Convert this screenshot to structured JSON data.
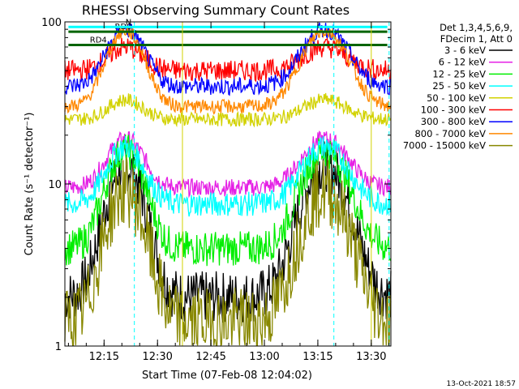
{
  "chart_data": {
    "type": "line",
    "title": "RHESSI Observing Summary Count Rates",
    "xlabel": "Start Time (07-Feb-08 12:04:02)",
    "ylabel": "Count Rate (s⁻¹ detector⁻¹)",
    "yscale": "log",
    "ylim": [
      1,
      100
    ],
    "xlim_minutes": [
      0,
      91.5
    ],
    "x_tick_labels": [
      "12:15",
      "12:30",
      "12:45",
      "13:00",
      "13:15",
      "13:30"
    ],
    "x_tick_minutes": [
      11,
      26,
      41,
      56,
      71,
      86
    ],
    "y_tick_labels": [
      "1",
      "10",
      "100"
    ],
    "y_tick_values": [
      1,
      10,
      100
    ],
    "info_lines": [
      "Det 1,3,4,5,6,9,",
      "FDecim 1, Att 0"
    ],
    "annotations": [
      {
        "text": "RD0",
        "y": 87
      },
      {
        "text": "RD4",
        "y": 72
      },
      {
        "text": "N",
        "y": 93
      }
    ],
    "timestamp": "13-Oct-2021 18:57",
    "night_intervals_minutes": [
      [
        33,
        65
      ],
      [
        86,
        91.5
      ]
    ],
    "saa_markers_minutes": [
      19.5,
      75.5,
      91
    ],
    "series": [
      {
        "name": "3 - 6 keV",
        "color": "#000000",
        "base": 2.0,
        "peak": 13.0,
        "noise": 0.15
      },
      {
        "name": "6 - 12 keV",
        "color": "#e520e5",
        "base": 9.5,
        "peak": 19.0,
        "noise": 0.05
      },
      {
        "name": "12 - 25 keV",
        "color": "#00ee00",
        "base": 4.0,
        "peak": 16.0,
        "noise": 0.1
      },
      {
        "name": "25 - 50 keV",
        "color": "#00ffff",
        "base": 7.5,
        "peak": 17.0,
        "noise": 0.07
      },
      {
        "name": "50 - 100 keV",
        "color": "#d2d200",
        "base": 25.0,
        "peak": 33.0,
        "noise": 0.04
      },
      {
        "name": "100 - 300 keV",
        "color": "#ff0000",
        "base": 50.0,
        "peak": 70.0,
        "noise": 0.06
      },
      {
        "name": "300 - 800 keV",
        "color": "#0000ff",
        "base": 40.0,
        "peak": 90.0,
        "noise": 0.05
      },
      {
        "name": "800 - 7000 keV",
        "color": "#ff8800",
        "base": 30.0,
        "peak": 88.0,
        "noise": 0.04
      },
      {
        "name": "7000 - 15000 keV",
        "color": "#888800",
        "base": 1.4,
        "peak": 9.0,
        "noise": 0.2
      }
    ],
    "grid": false,
    "legend_position": "right"
  }
}
